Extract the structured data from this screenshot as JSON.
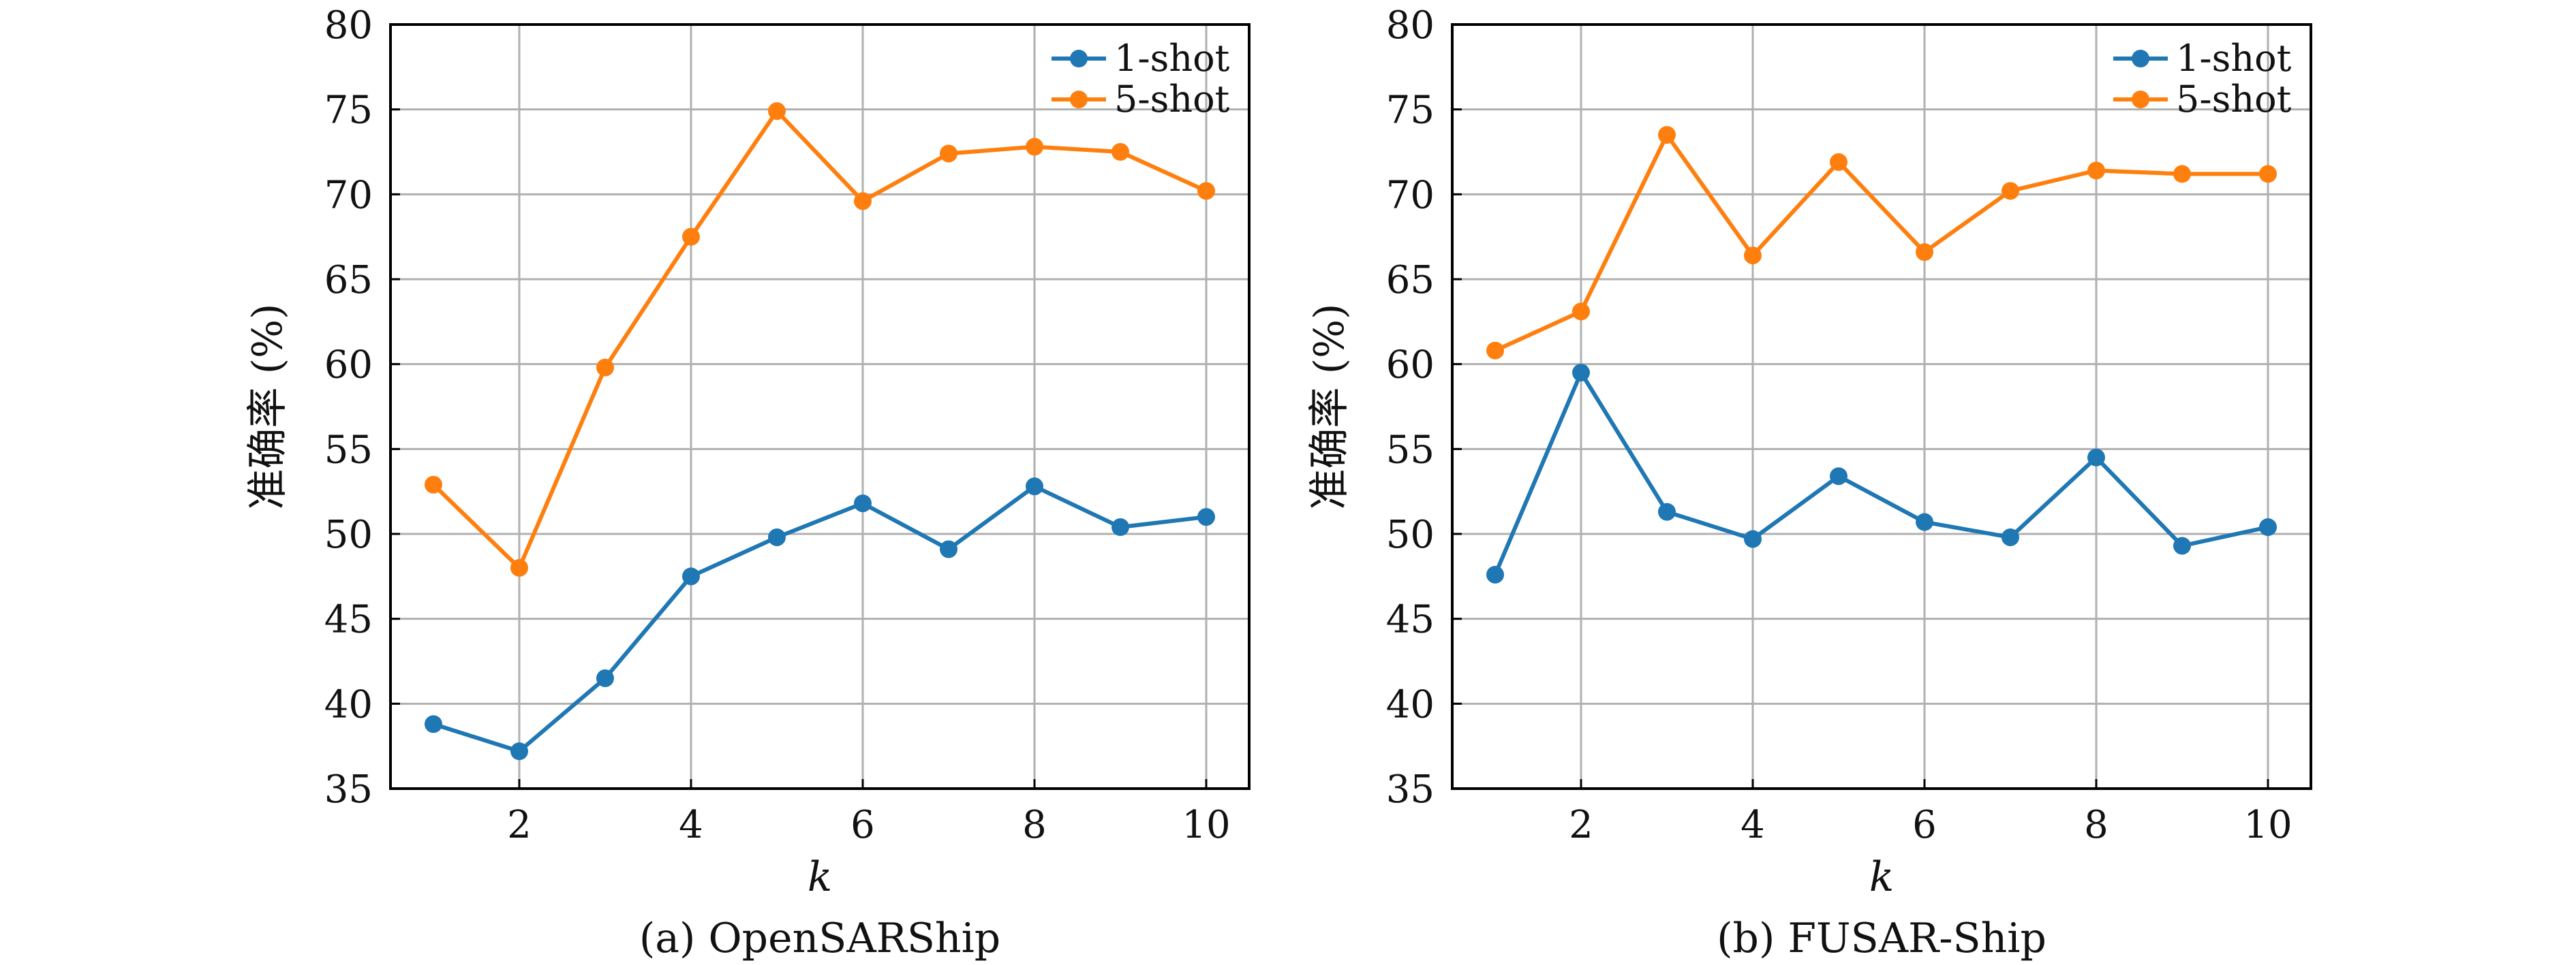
{
  "chart_data": [
    {
      "type": "line",
      "caption": "(a) OpenSARShip",
      "xlabel": "k",
      "ylabel": "准确率 (%)",
      "xlim": [
        0.5,
        10.5
      ],
      "ylim": [
        35,
        80
      ],
      "xticks": [
        2,
        4,
        6,
        8,
        10
      ],
      "yticks": [
        35,
        40,
        45,
        50,
        55,
        60,
        65,
        70,
        75,
        80
      ],
      "grid": true,
      "legend_position": "top-right",
      "x": [
        1,
        2,
        3,
        4,
        5,
        6,
        7,
        8,
        9,
        10
      ],
      "series": [
        {
          "name": "1-shot",
          "color": "#1f77b4",
          "values": [
            38.8,
            37.2,
            41.5,
            47.5,
            49.8,
            51.8,
            49.1,
            52.8,
            50.4,
            51.0
          ]
        },
        {
          "name": "5-shot",
          "color": "#ff7f0e",
          "values": [
            52.9,
            48.0,
            59.8,
            67.5,
            74.9,
            69.6,
            72.4,
            72.8,
            72.5,
            70.2
          ]
        }
      ]
    },
    {
      "type": "line",
      "caption": "(b) FUSAR-Ship",
      "xlabel": "k",
      "ylabel": "准确率 (%)",
      "xlim": [
        0.5,
        10.5
      ],
      "ylim": [
        35,
        80
      ],
      "xticks": [
        2,
        4,
        6,
        8,
        10
      ],
      "yticks": [
        35,
        40,
        45,
        50,
        55,
        60,
        65,
        70,
        75,
        80
      ],
      "grid": true,
      "legend_position": "top-right",
      "x": [
        1,
        2,
        3,
        4,
        5,
        6,
        7,
        8,
        9,
        10
      ],
      "series": [
        {
          "name": "1-shot",
          "color": "#1f77b4",
          "values": [
            47.6,
            59.5,
            51.3,
            49.7,
            53.4,
            50.7,
            49.8,
            54.5,
            49.3,
            50.4
          ]
        },
        {
          "name": "5-shot",
          "color": "#ff7f0e",
          "values": [
            60.8,
            63.1,
            73.5,
            66.4,
            71.9,
            66.6,
            70.2,
            71.4,
            71.2,
            71.2
          ]
        }
      ]
    }
  ]
}
